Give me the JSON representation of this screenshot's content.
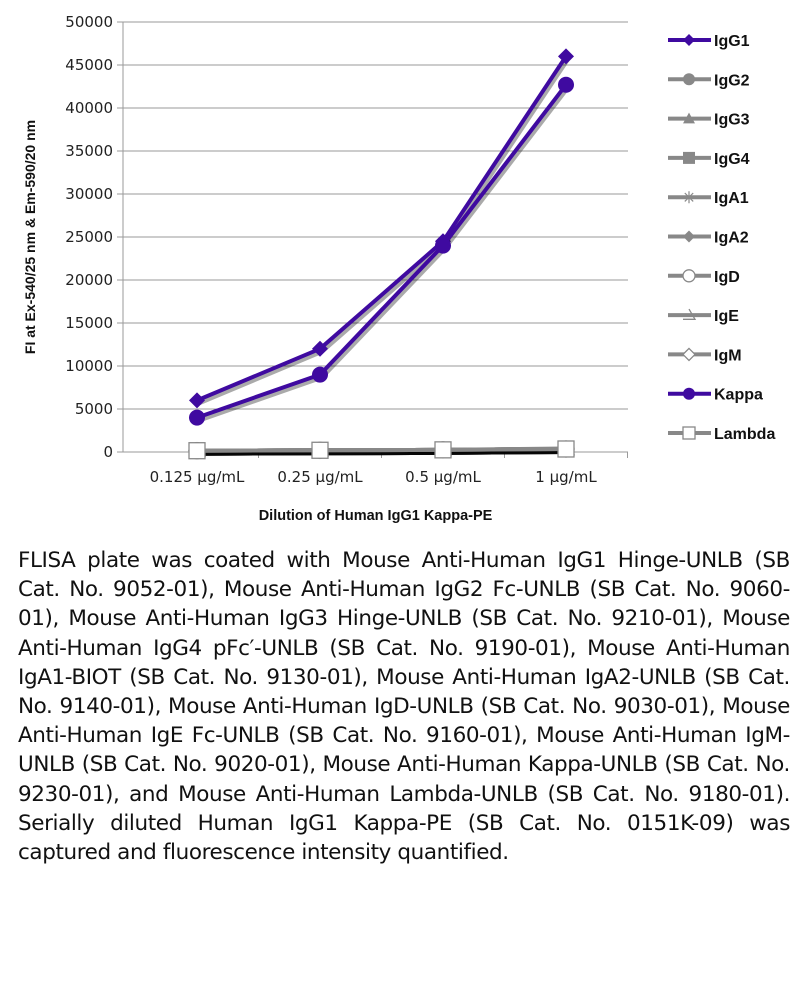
{
  "chart_data": {
    "type": "line",
    "xlabel": "Dilution of Human IgG1 Kappa-PE",
    "ylabel": "FI at Ex-540/25 nm & Em-590/20 nm",
    "categories": [
      "0.125 µg/mL",
      "0.25 µg/mL",
      "0.5 µg/mL",
      "1 µg/mL"
    ],
    "ylim": [
      0,
      50000
    ],
    "yticks": [
      0,
      5000,
      10000,
      15000,
      20000,
      25000,
      30000,
      35000,
      40000,
      45000,
      50000
    ],
    "grid": true,
    "legend_position": "right",
    "series": [
      {
        "name": "IgG1",
        "color": "#3f0aa0",
        "marker": "diamond",
        "values": [
          6000,
          12000,
          24500,
          46000
        ]
      },
      {
        "name": "IgG2",
        "color": "#888888",
        "marker": "circle",
        "values": [
          150,
          200,
          250,
          350
        ]
      },
      {
        "name": "IgG3",
        "color": "#888888",
        "marker": "triangle",
        "values": [
          150,
          200,
          250,
          350
        ]
      },
      {
        "name": "IgG4",
        "color": "#888888",
        "marker": "square",
        "values": [
          150,
          200,
          250,
          400
        ]
      },
      {
        "name": "IgA1",
        "color": "#888888",
        "marker": "star",
        "values": [
          150,
          200,
          250,
          350
        ]
      },
      {
        "name": "IgA2",
        "color": "#888888",
        "marker": "diamond",
        "values": [
          150,
          200,
          250,
          350
        ]
      },
      {
        "name": "IgD",
        "color": "#888888",
        "marker": "open-circle",
        "values": [
          150,
          200,
          250,
          350
        ]
      },
      {
        "name": "IgE",
        "color": "#888888",
        "marker": "dash",
        "values": [
          150,
          200,
          250,
          350
        ]
      },
      {
        "name": "IgM",
        "color": "#888888",
        "marker": "open-diamond",
        "values": [
          150,
          200,
          250,
          350
        ]
      },
      {
        "name": "Kappa",
        "color": "#3f0aa0",
        "marker": "circle",
        "values": [
          4000,
          9000,
          24000,
          42700
        ]
      },
      {
        "name": "Lambda",
        "color": "#888888",
        "marker": "open-square",
        "values": [
          150,
          200,
          250,
          350
        ]
      }
    ]
  },
  "caption": "FLISA plate was coated with Mouse Anti-Human IgG1 Hinge-UNLB (SB Cat. No. 9052-01), Mouse Anti-Human IgG2 Fc-UNLB (SB Cat. No. 9060-01), Mouse Anti-Human IgG3 Hinge-UNLB (SB Cat. No. 9210-01), Mouse Anti-Human IgG4 pFc′-UNLB (SB Cat. No. 9190-01), Mouse Anti-Human IgA1-BIOT (SB Cat. No. 9130-01), Mouse Anti-Human IgA2-UNLB (SB Cat. No. 9140-01), Mouse Anti-Human IgD-UNLB (SB Cat. No. 9030-01), Mouse Anti-Human IgE Fc-UNLB (SB Cat. No. 9160-01), Mouse Anti-Human IgM-UNLB (SB Cat. No. 9020-01), Mouse Anti-Human Kappa-UNLB (SB Cat. No. 9230-01), and Mouse Anti-Human Lambda-UNLB (SB Cat. No. 9180-01). Serially diluted Human IgG1 Kappa-PE (SB Cat. No. 0151K-09) was captured and fluorescence intensity quantified."
}
